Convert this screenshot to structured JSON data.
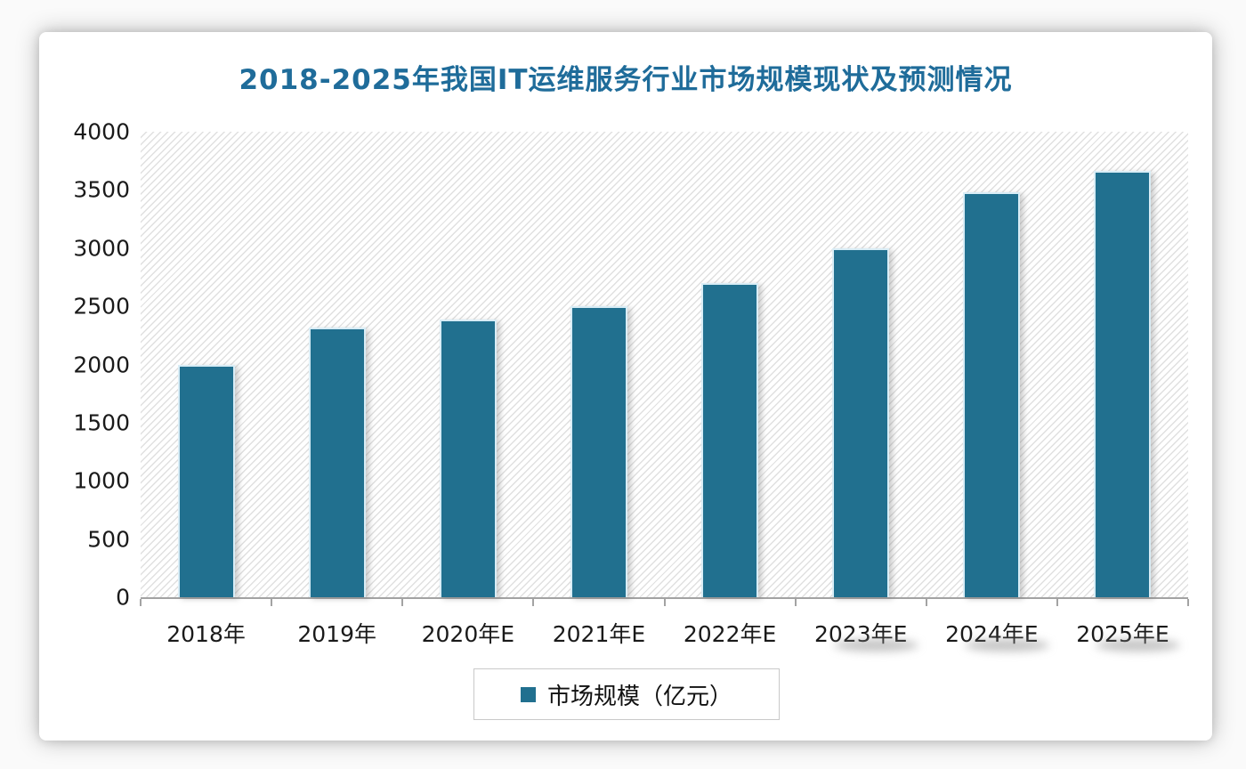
{
  "chart_data": {
    "type": "bar",
    "title": "2018-2025年我国IT运维服务行业市场规模现状及预测情况",
    "categories": [
      "2018年",
      "2019年",
      "2020年E",
      "2021年E",
      "2022年E",
      "2023年E",
      "2024年E",
      "2025年E"
    ],
    "series": [
      {
        "name": "市场规模（亿元）",
        "values": [
          2000,
          2320,
          2390,
          2500,
          2700,
          3000,
          3480,
          3660
        ]
      }
    ],
    "xlabel": "",
    "ylabel": "",
    "ylim": [
      0,
      4000
    ],
    "yticks": [
      0,
      500,
      1000,
      1500,
      2000,
      2500,
      3000,
      3500,
      4000
    ],
    "grid": false,
    "legend_position": "bottom",
    "colors": {
      "bar_fill": "#21708F",
      "title_text": "#1F6C9A",
      "axis_line": "#a3a3a3",
      "tick_text": "#1a1a1a"
    }
  },
  "legend": {
    "label": "市场规模（亿元）"
  }
}
